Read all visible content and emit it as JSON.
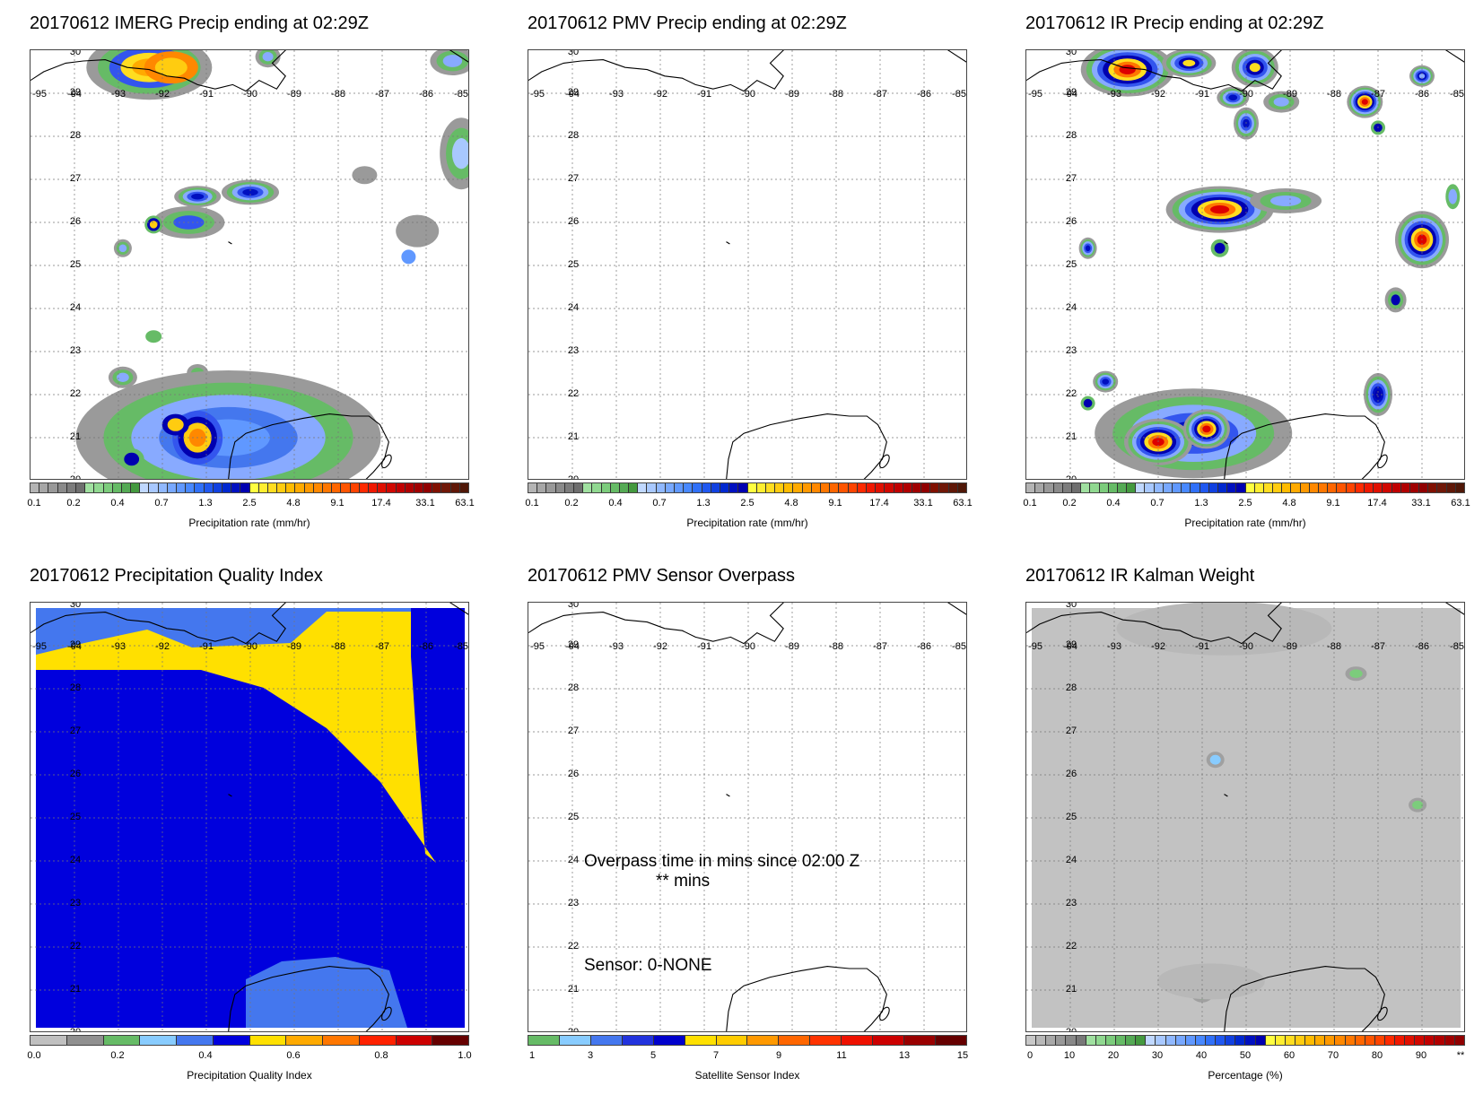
{
  "panels": [
    {
      "id": "imerg",
      "title": "20170612 IMERG Precip ending at 02:29Z",
      "colorbar": "precip",
      "field": "imerg"
    },
    {
      "id": "pmv",
      "title": "20170612 PMV Precip ending at 02:29Z",
      "colorbar": "precip",
      "field": "none"
    },
    {
      "id": "ir",
      "title": "20170612 IR Precip ending at 02:29Z",
      "colorbar": "precip",
      "field": "ir"
    },
    {
      "id": "pqi",
      "title": "20170612 Precipitation Quality Index",
      "colorbar": "pqi",
      "field": "pqi"
    },
    {
      "id": "sensor",
      "title": "20170612 PMV Sensor Overpass",
      "colorbar": "sensor",
      "field": "none",
      "overlay": {
        "line1": "Overpass time in mins since 02:00 Z",
        "line2": "** mins",
        "sensor": "Sensor:   0-NONE"
      }
    },
    {
      "id": "kalman",
      "title": "20170612 IR Kalman Weight",
      "colorbar": "kalman",
      "field": "kalman"
    }
  ],
  "axes": {
    "lat_labels": [
      "30",
      "29",
      "28",
      "27",
      "26",
      "25",
      "24",
      "23",
      "22",
      "21",
      "20"
    ],
    "lon_labels": [
      "-95",
      "-94",
      "-93",
      "-92",
      "-91",
      "-90",
      "-89",
      "-88",
      "-87",
      "-86",
      "-85"
    ]
  },
  "colorbars": {
    "precip": {
      "label": "Precipitation rate (mm/hr)",
      "ticks": [
        "0.1",
        "0.2",
        "0.4",
        "0.7",
        "1.3",
        "2.5",
        "4.8",
        "9.1",
        "17.4",
        "33.1",
        "63.1"
      ],
      "colors": [
        "#b4b4b4",
        "#a6a6a6",
        "#989898",
        "#8a8a8a",
        "#7c7c7c",
        "#6e6e6e",
        "#a0e0a0",
        "#90d890",
        "#7ccc7c",
        "#66bb66",
        "#55aa55",
        "#44993f",
        "#c0d8ff",
        "#a8c8ff",
        "#90b8ff",
        "#78a8ff",
        "#6098ff",
        "#4888ff",
        "#3070f8",
        "#2058f0",
        "#1040e0",
        "#0028d0",
        "#0010c0",
        "#0000b0",
        "#ffff40",
        "#ffee30",
        "#ffdd20",
        "#ffcc10",
        "#ffbb00",
        "#ffaa00",
        "#ff9900",
        "#ff8800",
        "#ff7700",
        "#ff6600",
        "#ff5500",
        "#ff4400",
        "#ff2a00",
        "#f01800",
        "#e01000",
        "#d00800",
        "#c00000",
        "#b00000",
        "#a00000",
        "#900000",
        "#801000",
        "#701808",
        "#601808",
        "#501808"
      ]
    },
    "pqi": {
      "label": "Precipitation Quality Index",
      "ticks": [
        "0.0",
        "0.2",
        "0.4",
        "0.6",
        "0.8",
        "1.0"
      ],
      "colors": [
        "#c0c0c0",
        "#909090",
        "#66bb66",
        "#88ccff",
        "#4477ee",
        "#0000dd",
        "#ffe000",
        "#ffaa00",
        "#ff7700",
        "#ff2200",
        "#cc0000",
        "#660000"
      ]
    },
    "sensor": {
      "label": "Satellite Sensor Index",
      "ticks": [
        "1",
        "3",
        "5",
        "7",
        "9",
        "11",
        "13",
        "15"
      ],
      "colors": [
        "#66bb66",
        "#88ccff",
        "#4477ee",
        "#2233dd",
        "#0000cc",
        "#ffe000",
        "#ffcc00",
        "#ff9900",
        "#ff6600",
        "#ff3300",
        "#ee1100",
        "#cc0000",
        "#990000",
        "#660000"
      ]
    },
    "kalman": {
      "label": "Percentage (%)",
      "ticks": [
        "0",
        "10",
        "20",
        "30",
        "40",
        "50",
        "60",
        "70",
        "80",
        "90",
        "**"
      ],
      "colors": [
        "#c8c8c8",
        "#b8b8b8",
        "#a8a8a8",
        "#989898",
        "#888888",
        "#787878",
        "#a0e0a0",
        "#90d890",
        "#7ccc7c",
        "#66bb66",
        "#55aa55",
        "#44993f",
        "#c0d8ff",
        "#a8c8ff",
        "#90b8ff",
        "#78a8ff",
        "#6098ff",
        "#4888ff",
        "#3070f8",
        "#2058f0",
        "#1040e0",
        "#0028d0",
        "#0010c0",
        "#0000b0",
        "#ffff40",
        "#ffee30",
        "#ffdd20",
        "#ffcc10",
        "#ffbb00",
        "#ffaa00",
        "#ff9900",
        "#ff8800",
        "#ff7700",
        "#ff6600",
        "#ff5500",
        "#ff4400",
        "#ff2a00",
        "#f01800",
        "#e01000",
        "#d00800",
        "#c00000",
        "#b00000",
        "#a00000",
        "#900000"
      ]
    }
  }
}
